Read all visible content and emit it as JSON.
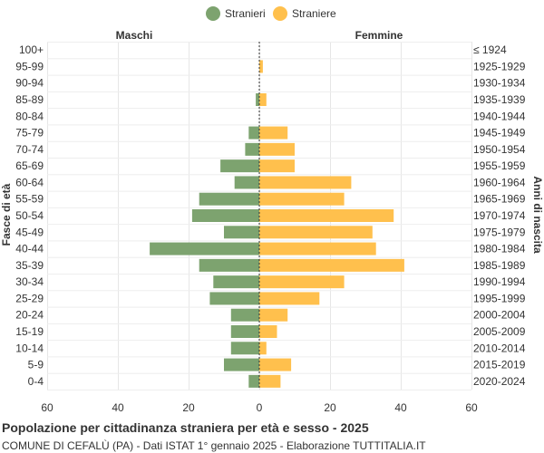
{
  "chart_data": {
    "type": "bar",
    "title": "Popolazione per cittadinanza straniera per età e sesso - 2025",
    "subtitle": "COMUNE DI CEFALÙ (PA) - Dati ISTAT 1° gennaio 2025 - Elaborazione TUTTITALIA.IT",
    "left_header": "Maschi",
    "right_header": "Femmine",
    "ylabel_left": "Fasce di età",
    "ylabel_right": "Anni di nascita",
    "xlim": [
      -60,
      60
    ],
    "x_ticks": [
      -60,
      -40,
      -20,
      0,
      20,
      40,
      60
    ],
    "x_tick_labels": [
      "60",
      "40",
      "20",
      "0",
      "20",
      "40",
      "60"
    ],
    "grid": true,
    "legend_position": "top-center",
    "categories": [
      "100+",
      "95-99",
      "90-94",
      "85-89",
      "80-84",
      "75-79",
      "70-74",
      "65-69",
      "60-64",
      "55-59",
      "50-54",
      "45-49",
      "40-44",
      "35-39",
      "30-34",
      "25-29",
      "20-24",
      "15-19",
      "10-14",
      "5-9",
      "0-4"
    ],
    "birth_years": [
      "≤ 1924",
      "1925-1929",
      "1930-1934",
      "1935-1939",
      "1940-1944",
      "1945-1949",
      "1950-1954",
      "1955-1959",
      "1960-1964",
      "1965-1969",
      "1970-1974",
      "1975-1979",
      "1980-1984",
      "1985-1989",
      "1990-1994",
      "1995-1999",
      "2000-2004",
      "2005-2009",
      "2010-2014",
      "2015-2019",
      "2020-2024"
    ],
    "series": [
      {
        "name": "Stranieri",
        "color": "#7da36f",
        "side": "left",
        "values": [
          0,
          0,
          0,
          1,
          0,
          3,
          4,
          11,
          7,
          17,
          19,
          10,
          31,
          17,
          13,
          14,
          8,
          8,
          8,
          10,
          3
        ]
      },
      {
        "name": "Straniere",
        "color": "#ffc04d",
        "side": "right",
        "values": [
          0,
          1,
          0,
          2,
          0,
          8,
          10,
          10,
          26,
          24,
          38,
          32,
          33,
          41,
          24,
          17,
          8,
          5,
          2,
          9,
          6
        ]
      }
    ]
  }
}
